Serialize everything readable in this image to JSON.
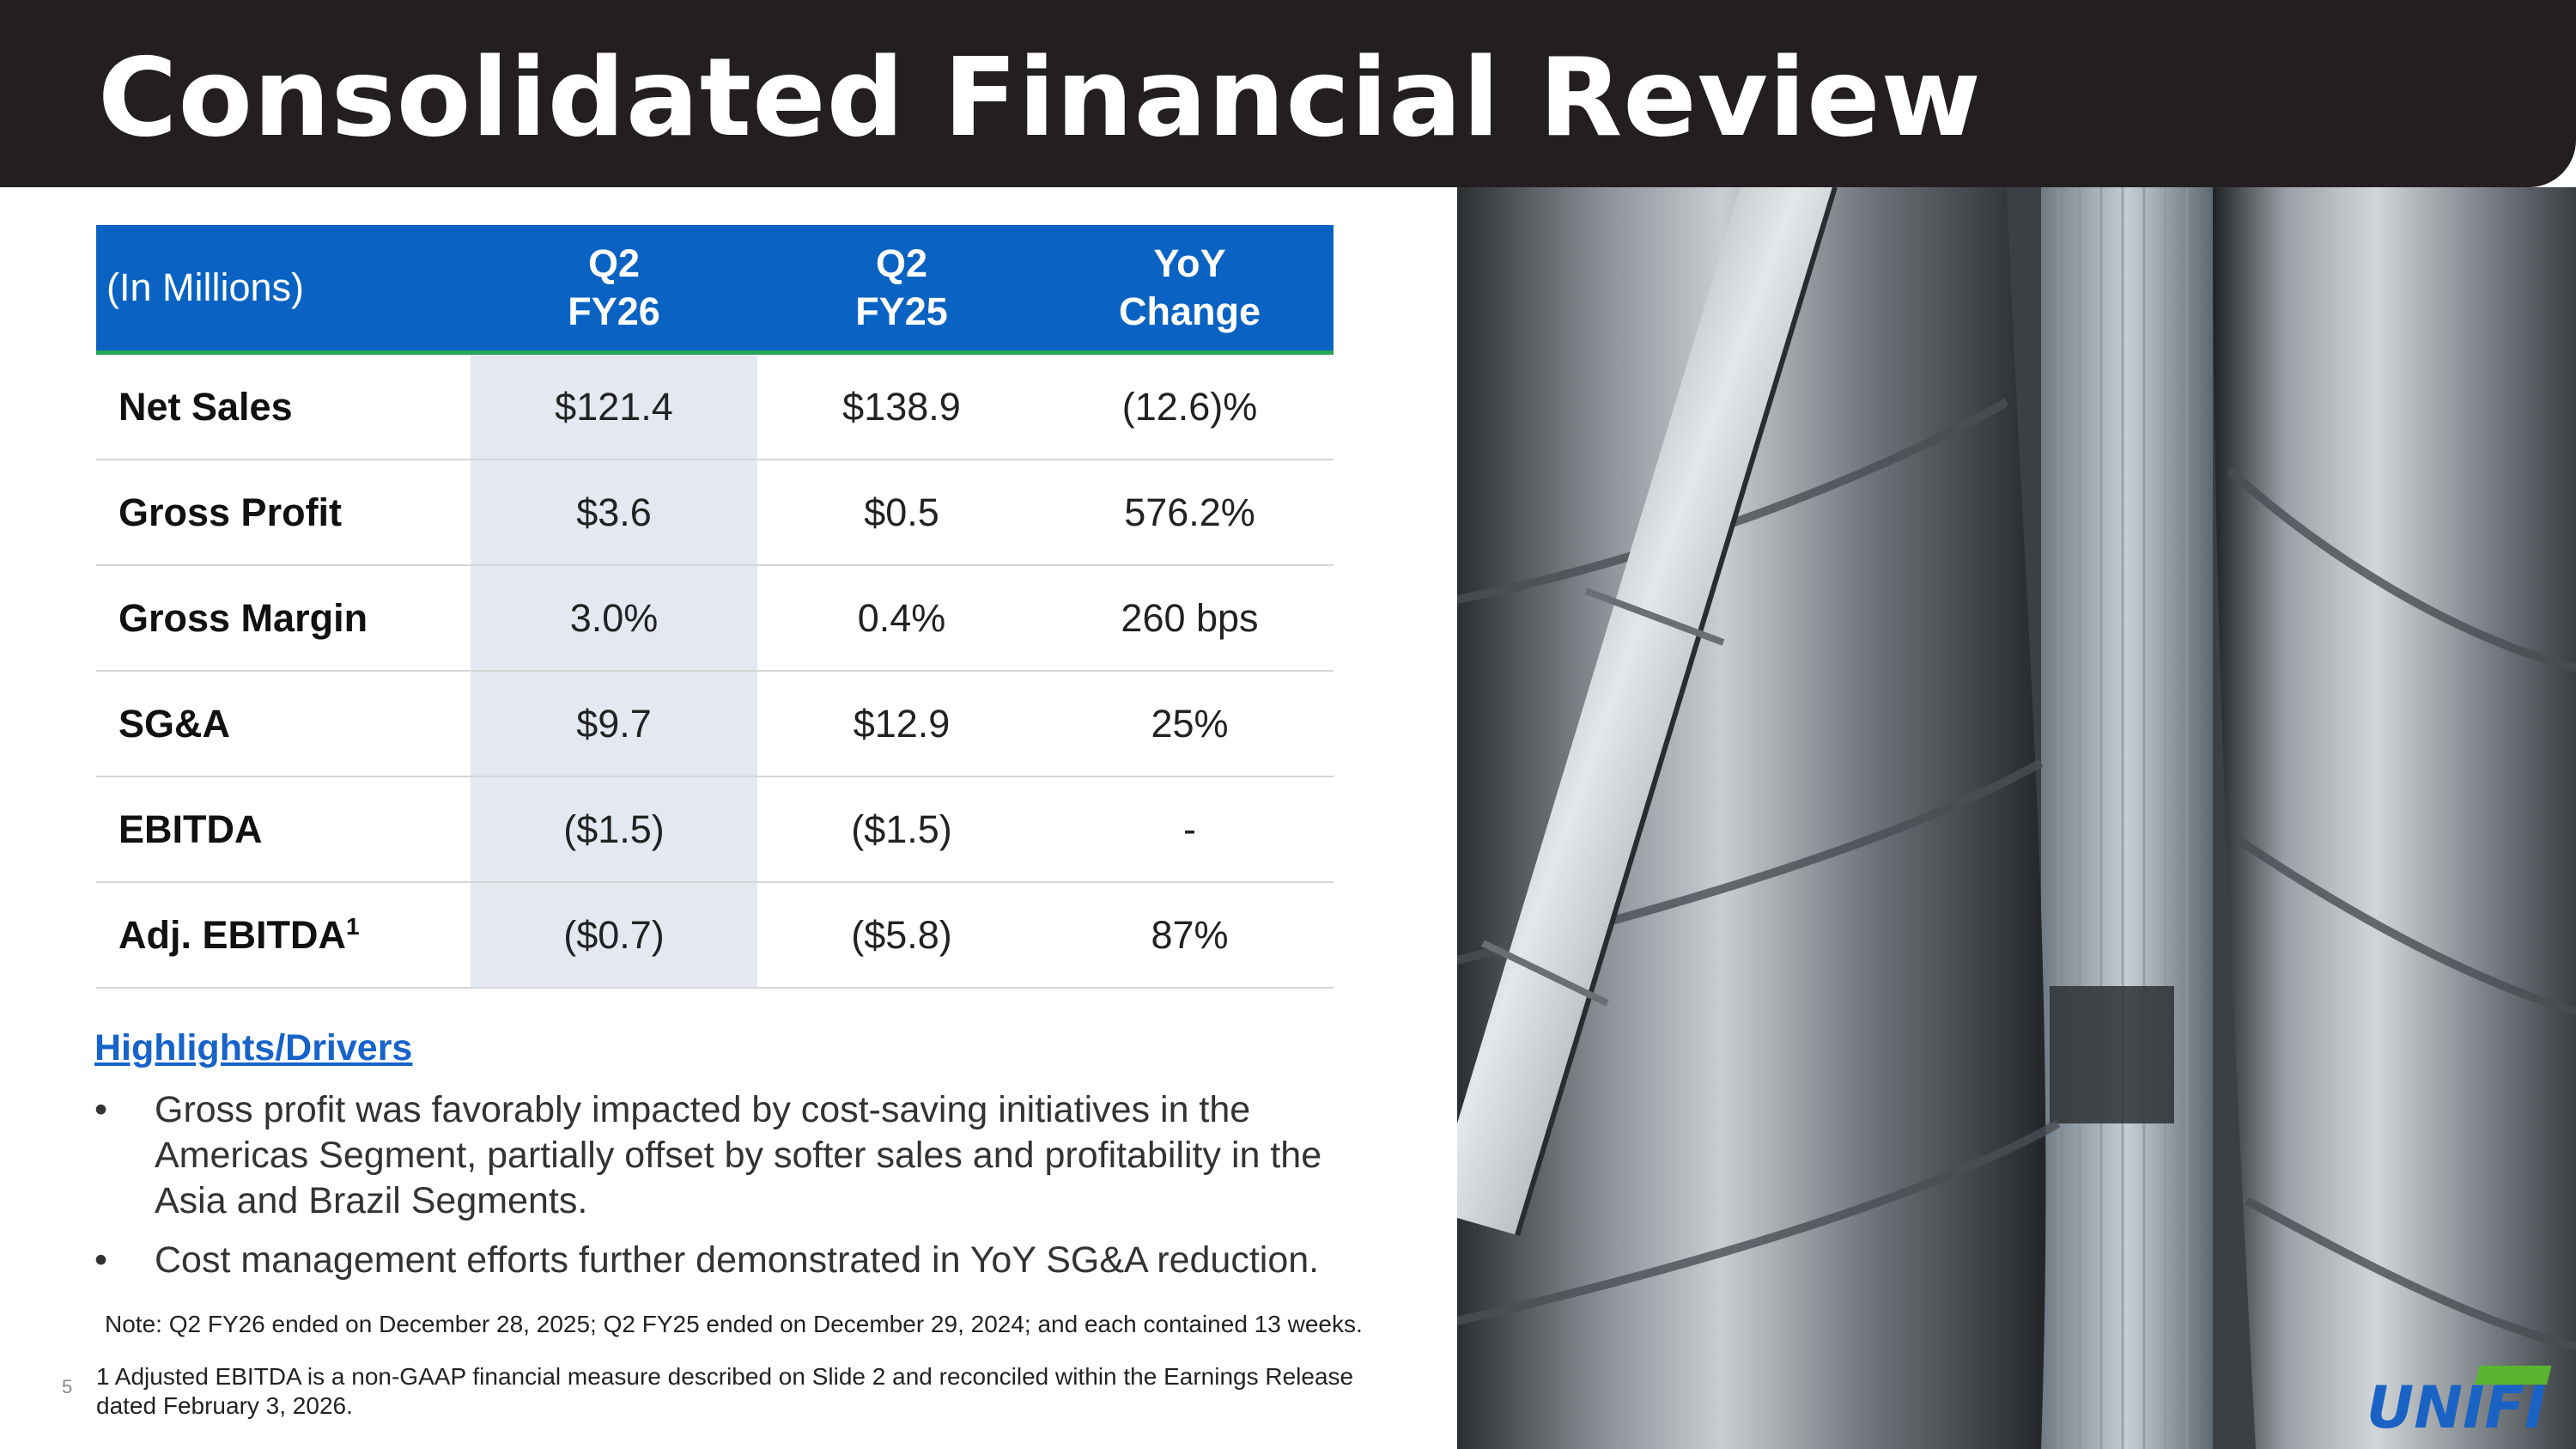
{
  "header": {
    "title": "Consolidated Financial Review"
  },
  "table": {
    "columns": [
      {
        "line1": "(In Millions)",
        "line2": ""
      },
      {
        "line1": "Q2",
        "line2": "FY26"
      },
      {
        "line1": "Q2",
        "line2": "FY25"
      },
      {
        "line1": "YoY",
        "line2": "Change"
      }
    ],
    "rows": [
      {
        "label": "Net Sales",
        "sup": "",
        "q2fy26": "$121.4",
        "q2fy25": "$138.9",
        "yoy": "(12.6)%"
      },
      {
        "label": "Gross Profit",
        "sup": "",
        "q2fy26": "$3.6",
        "q2fy25": "$0.5",
        "yoy": "576.2%"
      },
      {
        "label": "Gross Margin",
        "sup": "",
        "q2fy26": "3.0%",
        "q2fy25": "0.4%",
        "yoy": "260 bps"
      },
      {
        "label": "SG&A",
        "sup": "",
        "q2fy26": "$9.7",
        "q2fy25": "$12.9",
        "yoy": "25%"
      },
      {
        "label": "EBITDA",
        "sup": "",
        "q2fy26": "($1.5)",
        "q2fy25": "($1.5)",
        "yoy": "-"
      },
      {
        "label": "Adj. EBITDA",
        "sup": "1",
        "q2fy26": "($0.7)",
        "q2fy25": "($5.8)",
        "yoy": "87%"
      }
    ]
  },
  "highlights": {
    "title": "Highlights/Drivers",
    "bullet_glyph": "•",
    "bullets": [
      "Gross profit was favorably impacted by cost-saving initiatives in the Americas Segment, partially offset by softer sales and profitability in the Asia and Brazil Segments.",
      "Cost management efforts further demonstrated in YoY SG&A reduction."
    ]
  },
  "note": "Note: Q2 FY26 ended on December 28, 2025; Q2 FY25 ended on December 29, 2024; and each contained 13 weeks.",
  "footnote": "1 Adjusted EBITDA is a non-GAAP financial measure described on Slide 2 and reconciled within the Earnings Release dated February 3, 2026.",
  "page_number": "5",
  "logo": {
    "text": "UNIFI",
    "color_blue": "#1a63c4",
    "color_green": "#5bb531"
  },
  "colors": {
    "title_bar": "#231f20",
    "table_header": "#0a63c2",
    "header_rule": "#26a457",
    "highlight_col": "#e3e8f1",
    "link_blue": "#1763c9"
  },
  "image": {
    "subject": "industrial steel silos and pipe"
  }
}
